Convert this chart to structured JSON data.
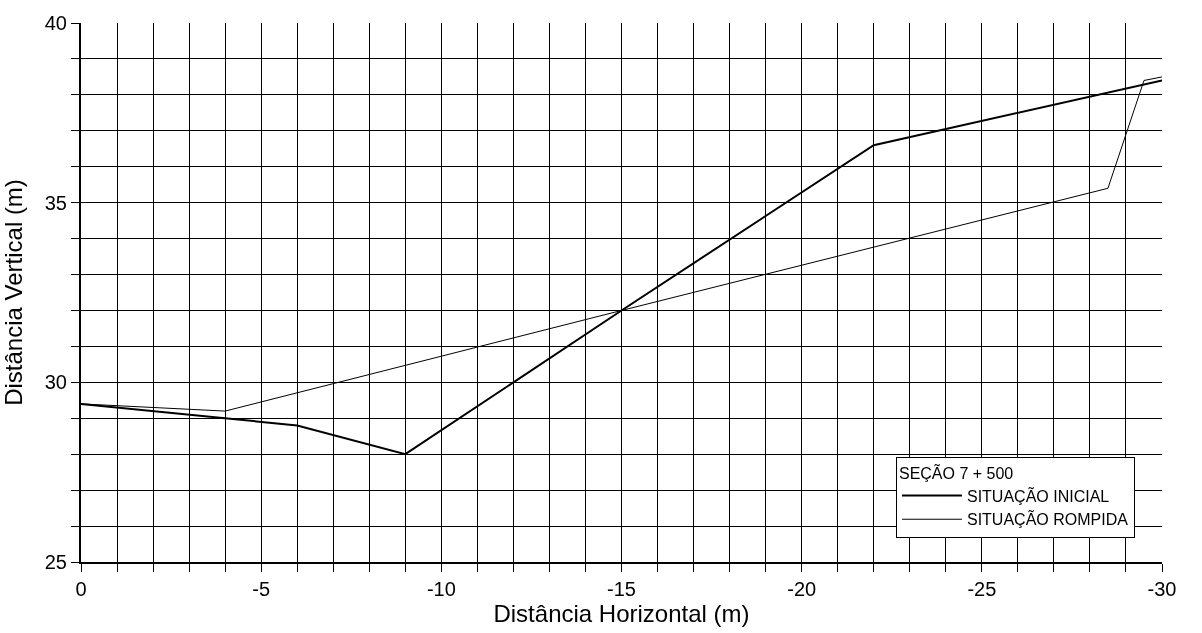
{
  "chart_data": {
    "type": "line",
    "xlabel": "Distância Horizontal (m)",
    "ylabel": "Distância Vertical (m)",
    "legend_title": "SEÇÃO 7 + 500",
    "xlim": [
      0,
      -30
    ],
    "ylim": [
      25,
      40
    ],
    "xticks": [
      0,
      {
        "value": -1,
        "label": null
      },
      {
        "value": -2,
        "label": null
      },
      {
        "value": -3,
        "label": null
      },
      {
        "value": -4,
        "label": null
      },
      -5,
      {
        "value": -6,
        "label": null
      },
      {
        "value": -7,
        "label": null
      },
      {
        "value": -8,
        "label": null
      },
      {
        "value": -9,
        "label": null
      },
      -10,
      {
        "value": -11,
        "label": null
      },
      {
        "value": -12,
        "label": null
      },
      {
        "value": -13,
        "label": null
      },
      {
        "value": -14,
        "label": null
      },
      -15,
      {
        "value": -16,
        "label": null
      },
      {
        "value": -17,
        "label": null
      },
      {
        "value": -18,
        "label": null
      },
      {
        "value": -19,
        "label": null
      },
      -20,
      {
        "value": -21,
        "label": null
      },
      {
        "value": -22,
        "label": null
      },
      {
        "value": -23,
        "label": null
      },
      {
        "value": -24,
        "label": null
      },
      -25,
      {
        "value": -26,
        "label": null
      },
      {
        "value": -27,
        "label": null
      },
      {
        "value": -28,
        "label": null
      },
      {
        "value": -29,
        "label": null
      },
      -30
    ],
    "yticks": [
      25,
      {
        "value": 26,
        "label": null
      },
      {
        "value": 27,
        "label": null
      },
      {
        "value": 28,
        "label": null
      },
      {
        "value": 29,
        "label": null
      },
      30,
      {
        "value": 31,
        "label": null
      },
      {
        "value": 32,
        "label": null
      },
      {
        "value": 33,
        "label": null
      },
      {
        "value": 34,
        "label": null
      },
      35,
      {
        "value": 36,
        "label": null
      },
      {
        "value": 37,
        "label": null
      },
      {
        "value": 38,
        "label": null
      },
      {
        "value": 39,
        "label": null
      },
      40
    ],
    "grid": true,
    "legend": "bottom right",
    "marker": "none",
    "line_style": "solid",
    "series": [
      {
        "name": "SITUAÇÃO INICIAL",
        "color": "#000000",
        "x": [
          0,
          -4,
          -6,
          -9,
          -15,
          -22,
          -30
        ],
        "values": [
          29.4,
          29.0,
          28.8,
          28.0,
          32.0,
          36.6,
          38.4
        ]
      },
      {
        "name": "SITUAÇÃO ROMPIDA",
        "color": "#000000",
        "x": [
          0,
          -4,
          -15,
          -28.5,
          -29.5,
          -30
        ],
        "values": [
          29.4,
          29.2,
          32.0,
          35.4,
          38.4,
          38.5
        ]
      }
    ]
  }
}
